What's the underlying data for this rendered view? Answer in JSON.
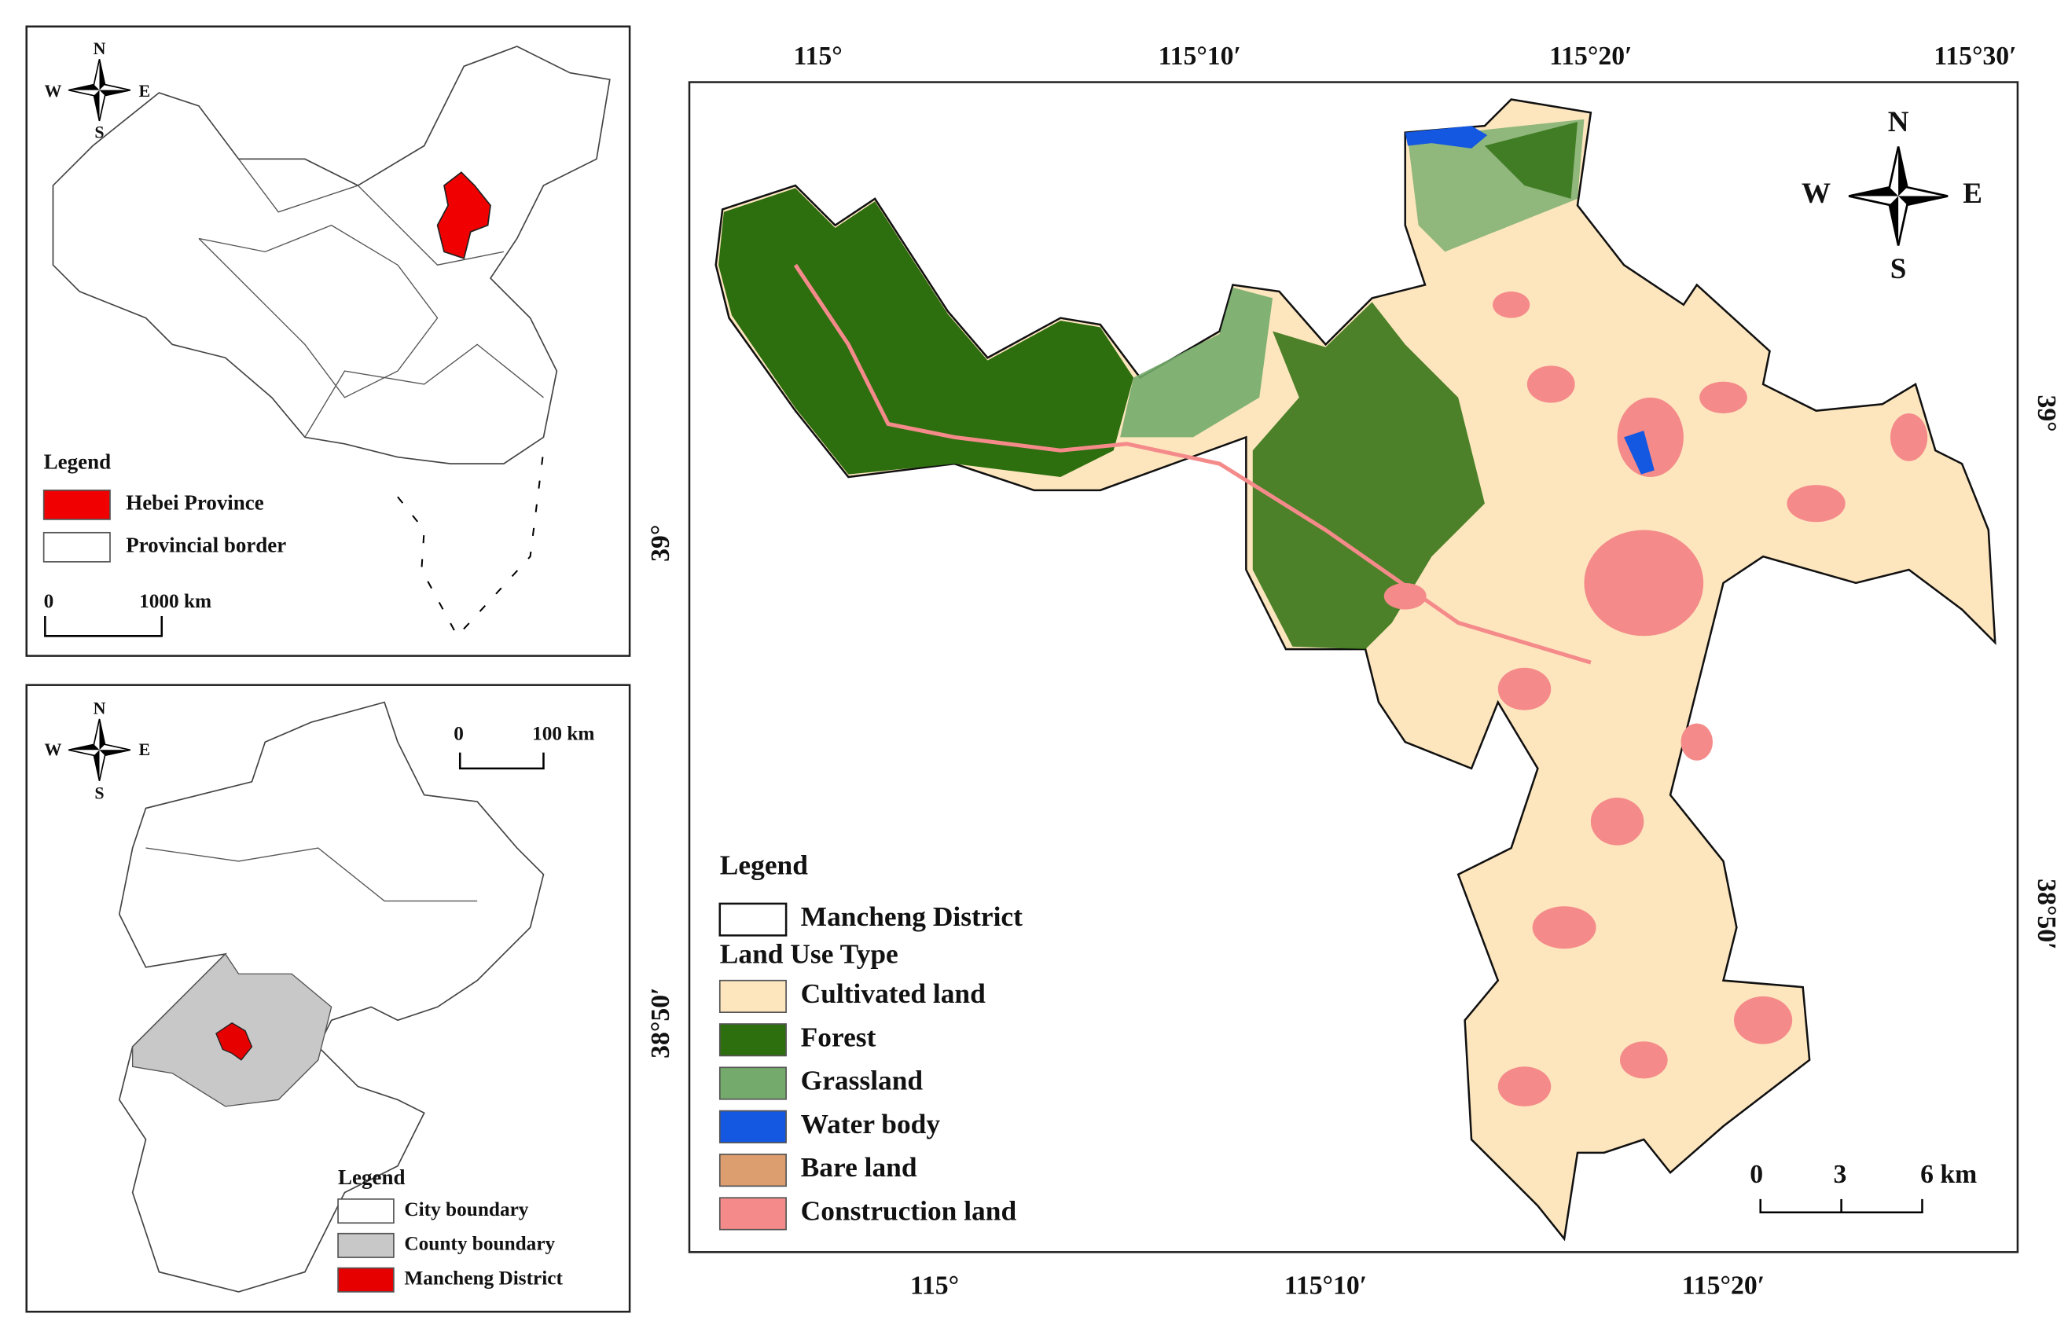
{
  "inset_china": {
    "compass": {
      "n": "N",
      "s": "S",
      "w": "W",
      "e": "E"
    },
    "legend": {
      "title": "Legend",
      "items": [
        {
          "label": "Hebei Province",
          "color": "#f00000"
        },
        {
          "label": "Provincial border",
          "color": "#ffffff"
        }
      ]
    },
    "scale_bar": {
      "start": "0",
      "end": "1000 km"
    }
  },
  "inset_hebei": {
    "compass": {
      "n": "N",
      "s": "S",
      "w": "W",
      "e": "E"
    },
    "scale_bar": {
      "start": "0",
      "end": "100 km"
    },
    "legend": {
      "title": "Legend",
      "items": [
        {
          "label": "City boundary",
          "color": "#ffffff"
        },
        {
          "label": "County boundary",
          "color": "#c8c8c8"
        },
        {
          "label": "Mancheng District",
          "color": "#e60000"
        }
      ]
    }
  },
  "main_map": {
    "lon_labels_top": [
      "115°",
      "115°10′",
      "115°20′",
      "115°30′"
    ],
    "lon_labels_bottom": [
      "115°",
      "115°10′",
      "115°20′"
    ],
    "lat_labels_left": [
      "39°",
      "38°50′"
    ],
    "lat_labels_right": [
      "39°",
      "38°50′"
    ],
    "compass": {
      "n": "N",
      "s": "S",
      "w": "W",
      "e": "E"
    },
    "legend": {
      "title": "Legend",
      "boundary": "Mancheng District",
      "subtitle": "Land Use Type",
      "items": [
        {
          "label": "Cultivated land",
          "color": "#fde6be"
        },
        {
          "label": "Forest",
          "color": "#2d6e0f"
        },
        {
          "label": "Grassland",
          "color": "#74ab6c"
        },
        {
          "label": "Water body",
          "color": "#1457e0"
        },
        {
          "label": "Bare land",
          "color": "#dc9e6e"
        },
        {
          "label": "Construction land",
          "color": "#f58a8a"
        }
      ]
    },
    "scale_bar": {
      "ticks": [
        "0",
        "3",
        "6 km"
      ]
    }
  }
}
